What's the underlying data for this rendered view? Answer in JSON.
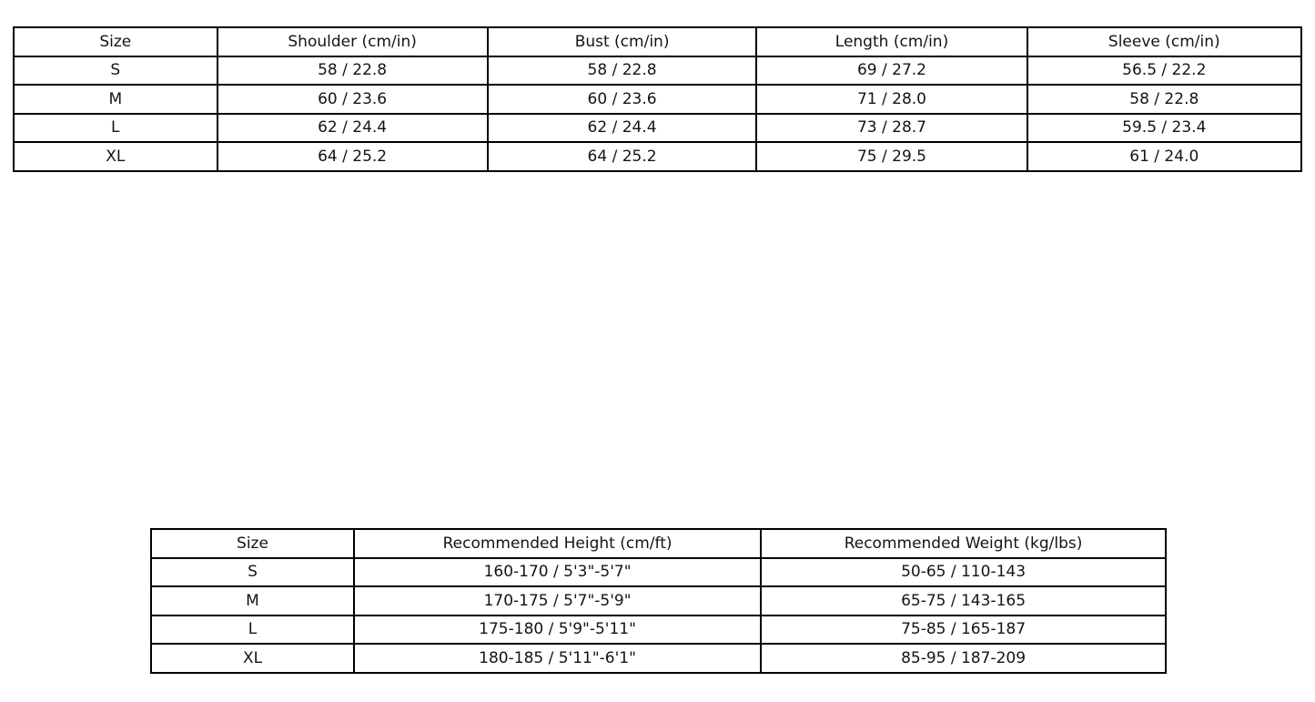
{
  "page": {
    "background_color": "#ffffff",
    "border_color": "#000000",
    "text_color": "#141414"
  },
  "tables": {
    "garment": {
      "headers": [
        "Size",
        "Shoulder (cm/in)",
        "Bust (cm/in)",
        "Length (cm/in)",
        "Sleeve (cm/in)"
      ],
      "rows": [
        [
          "S",
          "58 / 22.8",
          "58 / 22.8",
          "69 / 27.2",
          "56.5 / 22.2"
        ],
        [
          "M",
          "60 / 23.6",
          "60 / 23.6",
          "71 / 28.0",
          "58 / 22.8"
        ],
        [
          "L",
          "62 / 24.4",
          "62 / 24.4",
          "73 / 28.7",
          "59.5 / 23.4"
        ],
        [
          "XL",
          "64 / 25.2",
          "64 / 25.2",
          "75 / 29.5",
          "61 / 24.0"
        ]
      ]
    },
    "fit": {
      "headers": [
        "Size",
        "Recommended Height (cm/ft)",
        "Recommended Weight (kg/lbs)"
      ],
      "rows": [
        [
          "S",
          "160-170 / 5'3\"-5'7\"",
          "50-65 / 110-143"
        ],
        [
          "M",
          "170-175 / 5'7\"-5'9\"",
          "65-75 / 143-165"
        ],
        [
          "L",
          "175-180 / 5'9\"-5'11\"",
          "75-85 / 165-187"
        ],
        [
          "XL",
          "180-185 / 5'11\"-6'1\"",
          "85-95 / 187-209"
        ]
      ]
    }
  }
}
